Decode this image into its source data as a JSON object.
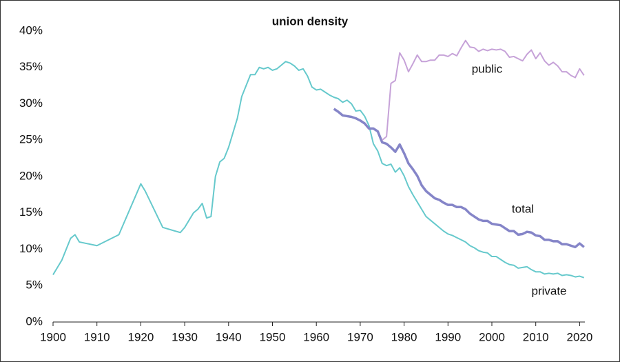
{
  "chart_data": {
    "type": "line",
    "title": "union density",
    "xlim": [
      1900,
      2021.2
    ],
    "xticks": [
      1900,
      1910,
      1920,
      1930,
      1940,
      1950,
      1960,
      1970,
      1980,
      1990,
      2000,
      2010,
      2020
    ],
    "ylim": [
      0,
      40
    ],
    "yticks": [
      {
        "value": 0,
        "label": "0%"
      },
      {
        "value": 5,
        "label": "5%"
      },
      {
        "value": 10,
        "label": "10%"
      },
      {
        "value": 15,
        "label": "15%"
      },
      {
        "value": 20,
        "label": "20%"
      },
      {
        "value": 25,
        "label": "25%"
      },
      {
        "value": 30,
        "label": "30%"
      },
      {
        "value": 35,
        "label": "35%"
      },
      {
        "value": 40,
        "label": "40%"
      }
    ],
    "series": [
      {
        "name": "private",
        "color": "#66c9cc",
        "x": [
          1900,
          1901,
          1902,
          1903,
          1904,
          1905,
          1906,
          1910,
          1915,
          1920,
          1921,
          1925,
          1929,
          1930,
          1931,
          1932,
          1933,
          1934,
          1935,
          1936,
          1937,
          1938,
          1939,
          1940,
          1941,
          1942,
          1943,
          1944,
          1945,
          1946,
          1947,
          1948,
          1949,
          1950,
          1951,
          1952,
          1953,
          1954,
          1955,
          1956,
          1957,
          1958,
          1959,
          1960,
          1961,
          1962,
          1963,
          1964,
          1965,
          1966,
          1967,
          1968,
          1969,
          1970,
          1971,
          1972,
          1973,
          1974,
          1975,
          1976,
          1977,
          1978,
          1979,
          1980,
          1981,
          1982,
          1983,
          1984,
          1985,
          1986,
          1987,
          1988,
          1989,
          1990,
          1991,
          1992,
          1993,
          1994,
          1995,
          1996,
          1997,
          1998,
          1999,
          2000,
          2001,
          2002,
          2003,
          2004,
          2005,
          2006,
          2007,
          2008,
          2009,
          2010,
          2011,
          2012,
          2013,
          2014,
          2015,
          2016,
          2017,
          2018,
          2019,
          2020,
          2021
        ],
        "values": [
          6.5,
          7.5,
          8.5,
          10,
          11.5,
          12,
          11,
          10.5,
          12,
          19,
          18,
          13,
          12.3,
          13,
          14,
          15,
          15.5,
          16.3,
          14.3,
          14.5,
          20,
          22,
          22.5,
          24,
          26,
          28,
          31,
          32.5,
          34,
          34,
          35,
          34.8,
          35,
          34.6,
          34.8,
          35.3,
          35.8,
          35.6,
          35.2,
          34.6,
          34.8,
          33.8,
          32.3,
          31.9,
          32,
          31.6,
          31.2,
          30.9,
          30.7,
          30.2,
          30.5,
          30,
          29,
          29.1,
          28.3,
          27,
          24.5,
          23.5,
          21.8,
          21.5,
          21.7,
          20.6,
          21.2,
          20.1,
          18.6,
          17.5,
          16.5,
          15.5,
          14.5,
          14,
          13.5,
          13,
          12.5,
          12.1,
          11.9,
          11.6,
          11.3,
          11,
          10.5,
          10.2,
          9.8,
          9.6,
          9.5,
          9,
          9,
          8.6,
          8.2,
          7.9,
          7.8,
          7.4,
          7.5,
          7.6,
          7.2,
          6.9,
          6.9,
          6.6,
          6.7,
          6.6,
          6.7,
          6.4,
          6.5,
          6.4,
          6.2,
          6.3,
          6.1
        ]
      },
      {
        "name": "total",
        "color": "#8585c8",
        "x": [
          1964,
          1965,
          1966,
          1967,
          1968,
          1969,
          1970,
          1971,
          1972,
          1973,
          1974,
          1975,
          1976,
          1977,
          1978,
          1979,
          1980,
          1981,
          1982,
          1983,
          1984,
          1985,
          1986,
          1987,
          1988,
          1989,
          1990,
          1991,
          1992,
          1993,
          1994,
          1995,
          1996,
          1997,
          1998,
          1999,
          2000,
          2001,
          2002,
          2003,
          2004,
          2005,
          2006,
          2007,
          2008,
          2009,
          2010,
          2011,
          2012,
          2013,
          2014,
          2015,
          2016,
          2017,
          2018,
          2019,
          2020,
          2021
        ],
        "values": [
          29.3,
          28.9,
          28.4,
          28.3,
          28.2,
          28,
          27.7,
          27.3,
          26.6,
          26.6,
          26.2,
          24.7,
          24.5,
          24,
          23.4,
          24.4,
          23.2,
          21.8,
          21,
          20.1,
          18.8,
          18,
          17.5,
          17,
          16.8,
          16.4,
          16.1,
          16.1,
          15.8,
          15.8,
          15.5,
          14.9,
          14.5,
          14.1,
          13.9,
          13.9,
          13.5,
          13.4,
          13.3,
          12.9,
          12.5,
          12.5,
          12,
          12.1,
          12.4,
          12.3,
          11.9,
          11.8,
          11.3,
          11.3,
          11.1,
          11.1,
          10.7,
          10.7,
          10.5,
          10.3,
          10.8,
          10.3
        ]
      },
      {
        "name": "public",
        "color": "#c6a2d8",
        "x": [
          1975,
          1976,
          1977,
          1978,
          1979,
          1980,
          1981,
          1982,
          1983,
          1984,
          1985,
          1986,
          1987,
          1988,
          1989,
          1990,
          1991,
          1992,
          1993,
          1994,
          1995,
          1996,
          1997,
          1998,
          1999,
          2000,
          2001,
          2002,
          2003,
          2004,
          2005,
          2006,
          2007,
          2008,
          2009,
          2010,
          2011,
          2012,
          2013,
          2014,
          2015,
          2016,
          2017,
          2018,
          2019,
          2020,
          2021
        ],
        "values": [
          25,
          25.5,
          32.8,
          33.2,
          37,
          36,
          34.4,
          35.5,
          36.7,
          35.8,
          35.8,
          36,
          36,
          36.7,
          36.7,
          36.5,
          36.9,
          36.6,
          37.7,
          38.7,
          37.8,
          37.7,
          37.2,
          37.5,
          37.3,
          37.5,
          37.4,
          37.5,
          37.2,
          36.4,
          36.5,
          36.2,
          35.9,
          36.8,
          37.4,
          36.2,
          37,
          35.9,
          35.3,
          35.7,
          35.2,
          34.4,
          34.4,
          33.9,
          33.6,
          34.8,
          33.9
        ]
      }
    ]
  }
}
